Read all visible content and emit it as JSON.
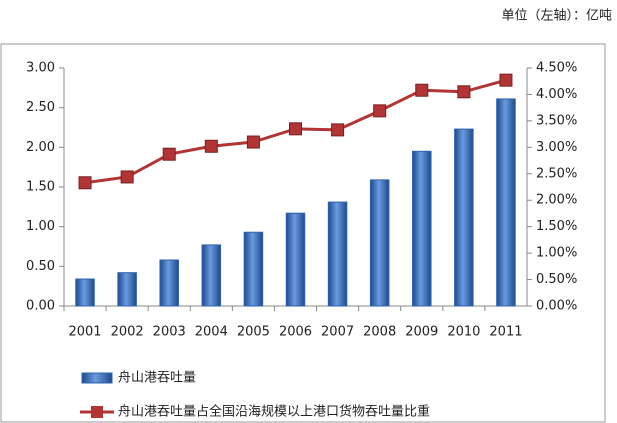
{
  "chart_data": {
    "type": "combo",
    "unit_note": "单位（左轴）：亿吨",
    "categories": [
      "2001",
      "2002",
      "2003",
      "2004",
      "2005",
      "2006",
      "2007",
      "2008",
      "2009",
      "2010",
      "2011"
    ],
    "series": [
      {
        "name": "舟山港吞吐量",
        "type": "bar",
        "color": "#2f63b0",
        "values": [
          0.34,
          0.42,
          0.58,
          0.77,
          0.93,
          1.17,
          1.31,
          1.59,
          1.95,
          2.23,
          2.61
        ]
      },
      {
        "name": "舟山港吞吐量占全国沿海规模以上港口货物吞吐量比重",
        "type": "line",
        "axis": "y2",
        "color": "#b23535",
        "values": [
          2.33,
          2.44,
          2.87,
          3.02,
          3.1,
          3.35,
          3.33,
          3.69,
          4.08,
          4.05,
          4.27
        ]
      }
    ],
    "ylim": [
      0,
      3
    ],
    "yticks": [
      {
        "value": 0,
        "label": "0.00"
      },
      {
        "value": 0.5,
        "label": "0.50"
      },
      {
        "value": 1,
        "label": "1.00"
      },
      {
        "value": 1.5,
        "label": "1.50"
      },
      {
        "value": 2,
        "label": "2.00"
      },
      {
        "value": 2.5,
        "label": "2.50"
      },
      {
        "value": 3,
        "label": "3.00"
      }
    ],
    "y2lim": [
      0,
      4.5
    ],
    "y2ticks": [
      {
        "value": 0,
        "label": "0.00%"
      },
      {
        "value": 0.5,
        "label": "0.50%"
      },
      {
        "value": 1,
        "label": "1.00%"
      },
      {
        "value": 1.5,
        "label": "1.50%"
      },
      {
        "value": 2,
        "label": "2.00%"
      },
      {
        "value": 2.5,
        "label": "2.50%"
      },
      {
        "value": 3,
        "label": "3.00%"
      },
      {
        "value": 3.5,
        "label": "3.50%"
      },
      {
        "value": 4,
        "label": "4.00%"
      },
      {
        "value": 4.5,
        "label": "4.50%"
      }
    ],
    "legend": "bottom"
  }
}
